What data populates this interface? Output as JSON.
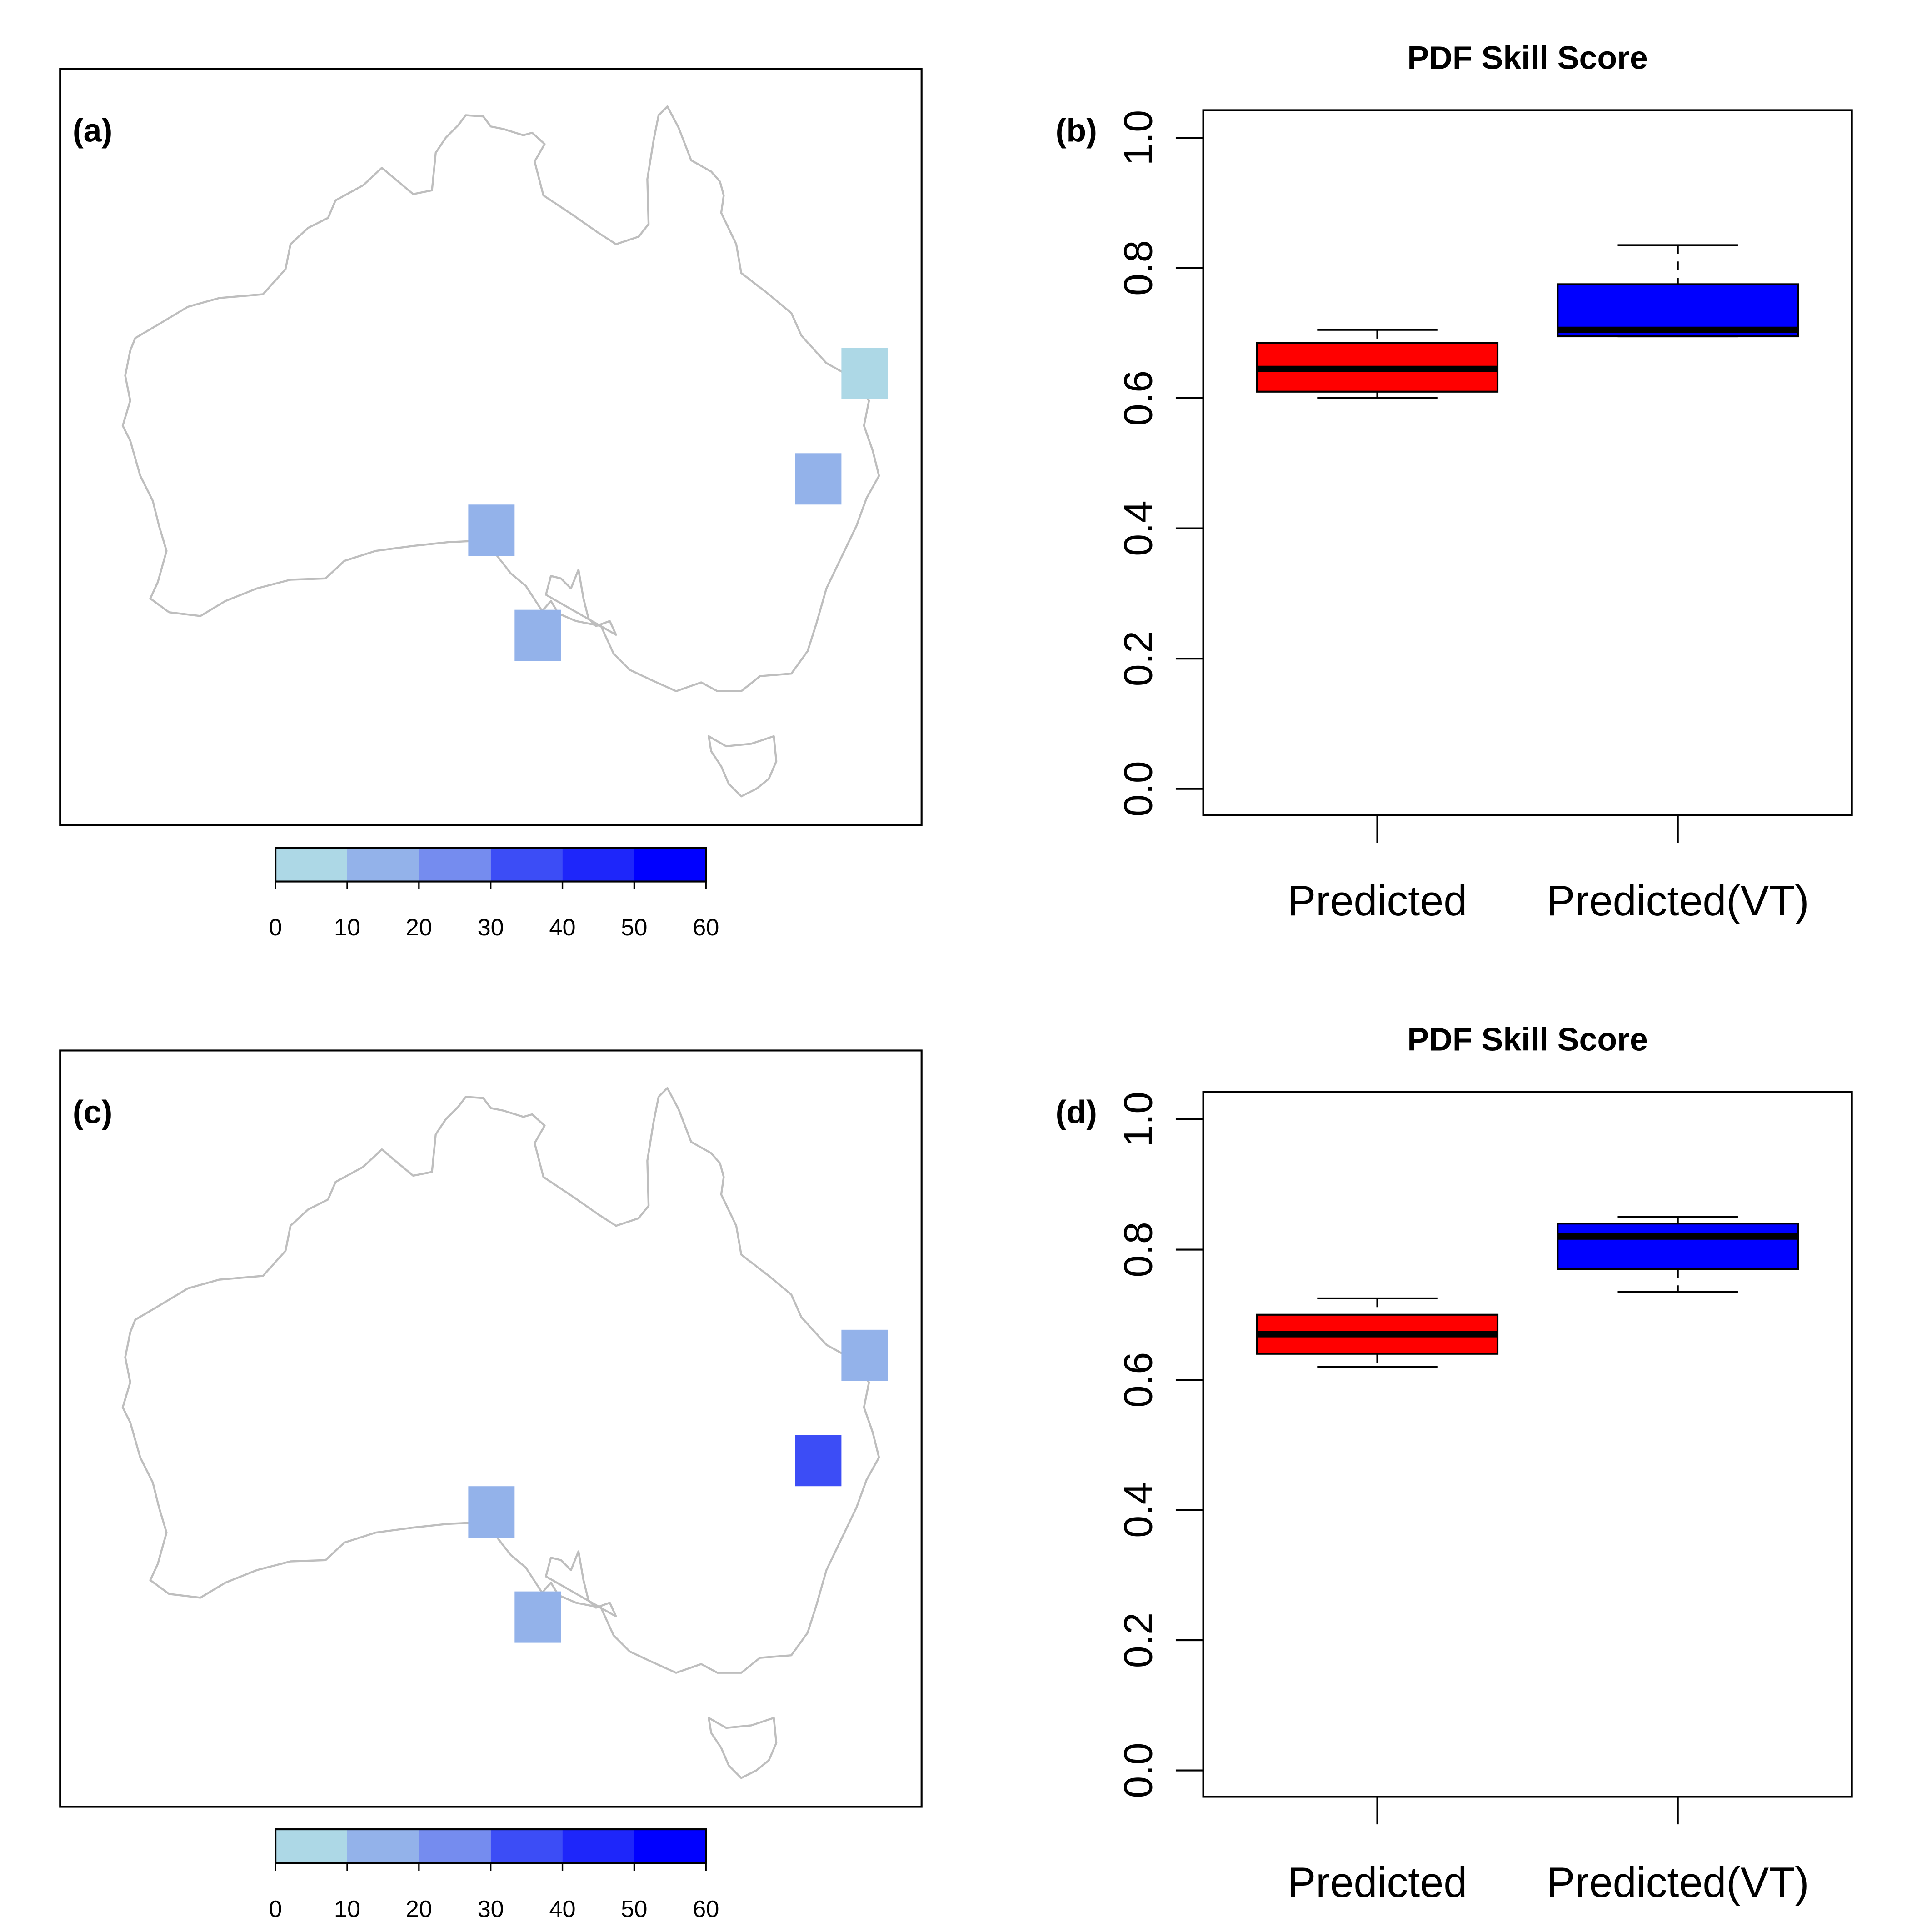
{
  "panels": {
    "a": {
      "label": "(a)"
    },
    "b": {
      "label": "(b)",
      "title": "PDF Skill Score"
    },
    "c": {
      "label": "(c)"
    },
    "d": {
      "label": "(d)",
      "title": "PDF Skill Score"
    }
  },
  "colorbar": {
    "ticks": [
      "0",
      "10",
      "20",
      "30",
      "40",
      "50",
      "60"
    ],
    "colors": [
      "#add8e6",
      "#93b2ea",
      "#758cef",
      "#3c4df6",
      "#1e26fa",
      "#0000ff"
    ]
  },
  "map": {
    "coast_color": "#bebebe",
    "cells_a": [
      {
        "name": "ne-coast",
        "value": 5,
        "color": "#add8e6"
      },
      {
        "name": "e-coast",
        "value": 15,
        "color": "#93b2ea"
      },
      {
        "name": "south-central",
        "value": 15,
        "color": "#93b2ea"
      },
      {
        "name": "gulf",
        "value": 15,
        "color": "#93b2ea"
      }
    ],
    "cells_c": [
      {
        "name": "ne-coast",
        "value": 15,
        "color": "#93b2ea"
      },
      {
        "name": "e-coast",
        "value": 35,
        "color": "#3c4df6"
      },
      {
        "name": "south-central",
        "value": 15,
        "color": "#93b2ea"
      },
      {
        "name": "gulf",
        "value": 15,
        "color": "#93b2ea"
      }
    ]
  },
  "chart_data": [
    {
      "panel": "b",
      "type": "boxplot",
      "title": "PDF Skill Score",
      "categories": [
        "Predicted",
        "Predicted(VT)"
      ],
      "yticks": [
        "0.0",
        "0.2",
        "0.4",
        "0.6",
        "0.8",
        "1.0"
      ],
      "ylim": [
        0,
        1.04
      ],
      "boxes": [
        {
          "name": "Predicted",
          "min": 0.6,
          "q1": 0.61,
          "median": 0.645,
          "q3": 0.685,
          "max": 0.705,
          "color": "#ff0000"
        },
        {
          "name": "Predicted(VT)",
          "min": 0.695,
          "q1": 0.695,
          "median": 0.705,
          "q3": 0.775,
          "max": 0.835,
          "color": "#0000ff"
        }
      ]
    },
    {
      "panel": "d",
      "type": "boxplot",
      "title": "PDF Skill Score",
      "categories": [
        "Predicted",
        "Predicted(VT)"
      ],
      "yticks": [
        "0.0",
        "0.2",
        "0.4",
        "0.6",
        "0.8",
        "1.0"
      ],
      "ylim": [
        0,
        1.04
      ],
      "boxes": [
        {
          "name": "Predicted",
          "min": 0.62,
          "q1": 0.64,
          "median": 0.67,
          "q3": 0.7,
          "max": 0.725,
          "color": "#ff0000"
        },
        {
          "name": "Predicted(VT)",
          "min": 0.735,
          "q1": 0.77,
          "median": 0.82,
          "q3": 0.84,
          "max": 0.85,
          "color": "#0000ff"
        }
      ]
    }
  ]
}
